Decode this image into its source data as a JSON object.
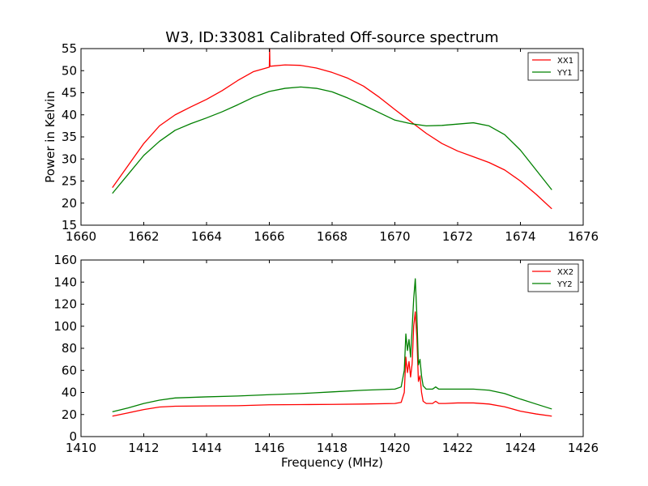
{
  "chart_data": [
    {
      "type": "line",
      "title": "W3, ID:33081 Calibrated Off-source spectrum",
      "xlabel": "",
      "ylabel": "Power in Kelvin",
      "xlim": [
        1660,
        1676
      ],
      "ylim": [
        15,
        55
      ],
      "xticks": [
        "1660",
        "1662",
        "1664",
        "1666",
        "1668",
        "1670",
        "1672",
        "1674",
        "1676"
      ],
      "yticks": [
        "15",
        "20",
        "25",
        "30",
        "35",
        "40",
        "45",
        "50",
        "55"
      ],
      "legend_position": "top-right",
      "grid": false,
      "series": [
        {
          "name": "XX1",
          "color": "#ff0000",
          "x": [
            1661.0,
            1661.5,
            1662.0,
            1662.5,
            1663.0,
            1663.5,
            1664.0,
            1664.5,
            1665.0,
            1665.5,
            1666.0,
            1666.01,
            1666.02,
            1666.5,
            1667.0,
            1667.5,
            1668.0,
            1668.5,
            1669.0,
            1669.5,
            1670.0,
            1670.5,
            1671.0,
            1671.5,
            1672.0,
            1672.5,
            1673.0,
            1673.5,
            1674.0,
            1674.5,
            1675.0
          ],
          "values": [
            23.5,
            28.5,
            33.5,
            37.5,
            40.0,
            41.8,
            43.5,
            45.5,
            47.8,
            49.8,
            50.8,
            55.0,
            51.0,
            51.3,
            51.2,
            50.6,
            49.6,
            48.3,
            46.5,
            44.0,
            41.2,
            38.5,
            35.8,
            33.5,
            31.8,
            30.5,
            29.2,
            27.5,
            25.0,
            22.0,
            18.7
          ]
        },
        {
          "name": "YY1",
          "color": "#008000",
          "x": [
            1661.0,
            1661.5,
            1662.0,
            1662.5,
            1663.0,
            1663.5,
            1664.0,
            1664.5,
            1665.0,
            1665.5,
            1666.0,
            1666.5,
            1667.0,
            1667.5,
            1668.0,
            1668.5,
            1669.0,
            1669.5,
            1670.0,
            1670.5,
            1671.0,
            1671.5,
            1672.0,
            1672.5,
            1673.0,
            1673.5,
            1674.0,
            1674.5,
            1675.0
          ],
          "values": [
            22.2,
            26.5,
            30.8,
            34.0,
            36.5,
            38.0,
            39.3,
            40.7,
            42.3,
            44.0,
            45.3,
            46.0,
            46.3,
            46.0,
            45.2,
            43.8,
            42.2,
            40.5,
            38.8,
            38.0,
            37.5,
            37.6,
            37.9,
            38.2,
            37.5,
            35.5,
            32.0,
            27.5,
            23.0
          ]
        }
      ]
    },
    {
      "type": "line",
      "title": "",
      "xlabel": "Frequency (MHz)",
      "ylabel": "",
      "xlim": [
        1410,
        1426
      ],
      "ylim": [
        0,
        160
      ],
      "xticks": [
        "1410",
        "1412",
        "1414",
        "1416",
        "1418",
        "1420",
        "1422",
        "1424",
        "1426"
      ],
      "yticks": [
        "0",
        "20",
        "40",
        "60",
        "80",
        "100",
        "120",
        "140",
        "160"
      ],
      "legend_position": "top-right",
      "grid": false,
      "series": [
        {
          "name": "XX2",
          "color": "#ff0000",
          "x": [
            1411.0,
            1411.5,
            1412.0,
            1412.5,
            1413.0,
            1414.0,
            1415.0,
            1416.0,
            1417.0,
            1418.0,
            1419.0,
            1420.0,
            1420.2,
            1420.3,
            1420.35,
            1420.4,
            1420.45,
            1420.5,
            1420.55,
            1420.6,
            1420.65,
            1420.7,
            1420.75,
            1420.8,
            1420.85,
            1420.9,
            1421.0,
            1421.2,
            1421.3,
            1421.4,
            1421.6,
            1422.0,
            1422.5,
            1423.0,
            1423.5,
            1424.0,
            1424.5,
            1425.0
          ],
          "values": [
            18.5,
            21.5,
            24.5,
            26.8,
            27.5,
            27.8,
            28.0,
            28.8,
            29.0,
            29.2,
            29.5,
            30.0,
            31.0,
            40.0,
            72.0,
            58.0,
            68.0,
            54.0,
            66.0,
            100.0,
            113.0,
            90.0,
            50.0,
            55.0,
            40.0,
            32.0,
            30.0,
            30.0,
            32.0,
            30.0,
            30.0,
            30.5,
            30.5,
            29.5,
            27.0,
            23.0,
            20.5,
            18.5
          ]
        },
        {
          "name": "YY2",
          "color": "#008000",
          "x": [
            1411.0,
            1411.5,
            1412.0,
            1412.5,
            1413.0,
            1414.0,
            1415.0,
            1416.0,
            1417.0,
            1418.0,
            1419.0,
            1420.0,
            1420.2,
            1420.3,
            1420.35,
            1420.4,
            1420.45,
            1420.5,
            1420.55,
            1420.6,
            1420.65,
            1420.7,
            1420.75,
            1420.8,
            1420.85,
            1420.9,
            1421.0,
            1421.2,
            1421.3,
            1421.4,
            1421.6,
            1422.0,
            1422.5,
            1423.0,
            1423.5,
            1424.0,
            1424.5,
            1425.0
          ],
          "values": [
            22.5,
            26.0,
            30.0,
            33.0,
            35.0,
            36.0,
            36.8,
            38.0,
            39.0,
            40.5,
            42.0,
            43.0,
            45.0,
            60.0,
            93.0,
            78.0,
            88.0,
            72.0,
            98.0,
            125.0,
            143.0,
            110.0,
            65.0,
            70.0,
            55.0,
            46.0,
            43.0,
            43.0,
            45.0,
            43.0,
            43.0,
            43.0,
            43.0,
            42.0,
            39.0,
            34.0,
            29.5,
            25.0
          ]
        }
      ]
    }
  ]
}
